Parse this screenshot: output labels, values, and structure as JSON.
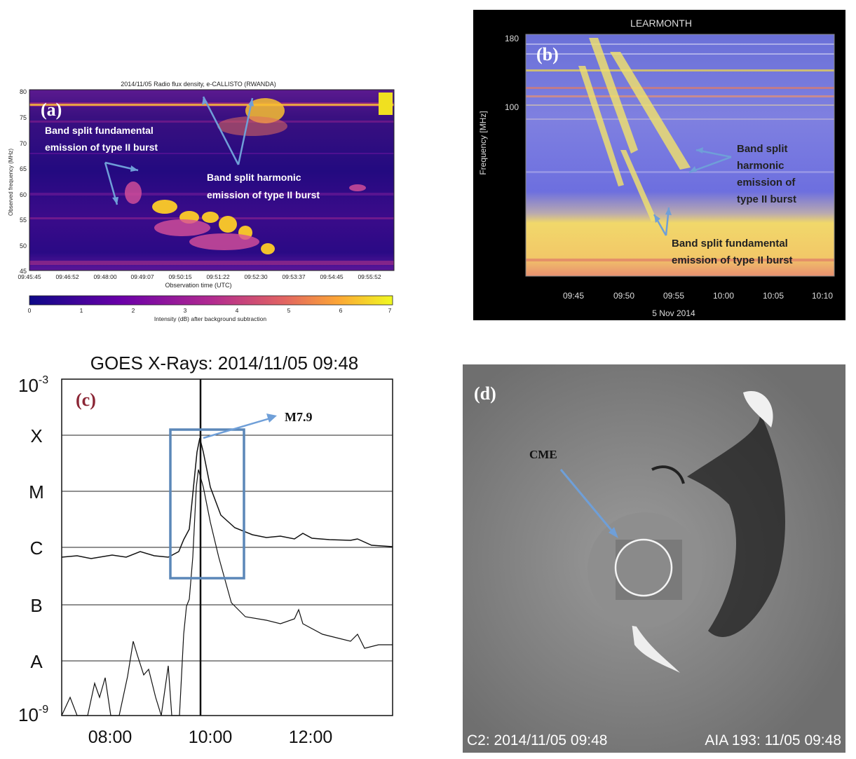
{
  "panel_a": {
    "letter": "(a)",
    "title": "2014/11/05  Radio flux density, e-CALLISTO (RWANDA)",
    "ylabel": "Observed frequency (MHz)",
    "xlabel": "Observation time (UTC)",
    "yticks": [
      "80",
      "75",
      "70",
      "65",
      "60",
      "55",
      "50",
      "45"
    ],
    "xticks": [
      "09:45:45",
      "09:46:52",
      "09:48:00",
      "09:49:07",
      "09:50:15",
      "09:51:22",
      "09:52:30",
      "09:53:37",
      "09:54:45",
      "09:55:52"
    ],
    "colorbar_label": "Intensity (dB) after background subtraction",
    "colorbar_ticks": [
      "0",
      "1",
      "2",
      "3",
      "4",
      "5",
      "6",
      "7"
    ],
    "fund_label_1": "Band split fundamental",
    "fund_label_2": "emission of type II burst",
    "harm_label_1": "Band split harmonic",
    "harm_label_2": "emission of type II burst"
  },
  "panel_b": {
    "letter": "(b)",
    "title": "LEARMONTH",
    "ylabel": "Frequency [MHz]",
    "yticks": [
      "180",
      "100"
    ],
    "xticks": [
      "09:45",
      "09:50",
      "09:55",
      "10:00",
      "10:05",
      "10:10"
    ],
    "date": "5 Nov 2014",
    "harm_label": [
      "Band split",
      "harmonic",
      "emission of",
      "type II burst"
    ],
    "fund_label_1": "Band split fundamental",
    "fund_label_2": "emission of type II burst"
  },
  "panel_c": {
    "letter": "(c)",
    "title": "GOES X-Rays: 2014/11/05 09:48",
    "y_top": "10",
    "y_top_exp": "-3",
    "y_bottom": "10",
    "y_bottom_exp": "-9",
    "classes": [
      "X",
      "M",
      "C",
      "B",
      "A"
    ],
    "xticks": [
      "08:00",
      "10:00",
      "12:00"
    ],
    "flare_label": "M7.9",
    "accent": "#5b87b8"
  },
  "panel_d": {
    "letter": "(d)",
    "cme_label": "CME",
    "caption_left": "C2: 2014/11/05 09:48",
    "caption_right": "AIA 193: 11/05 09:48"
  }
}
